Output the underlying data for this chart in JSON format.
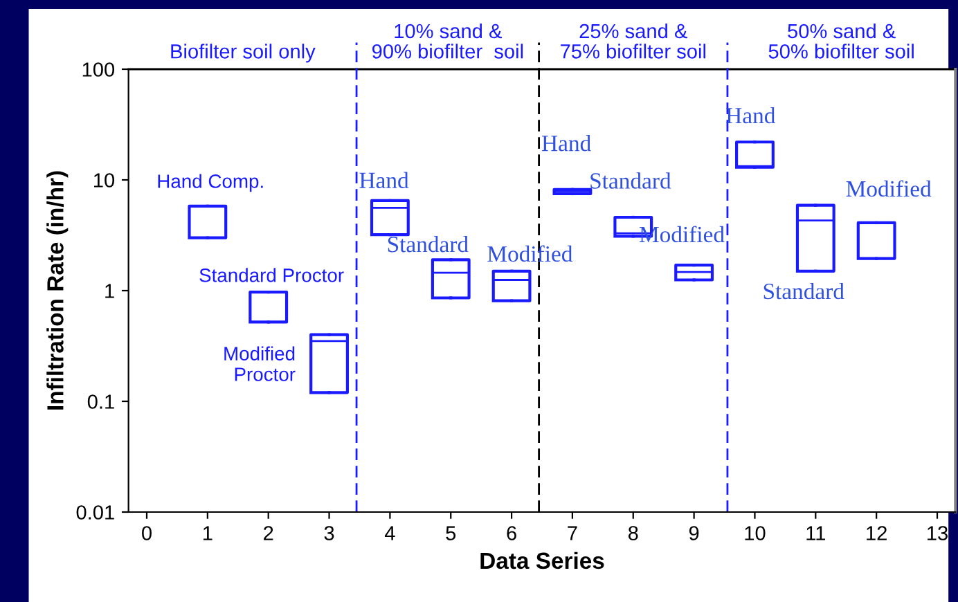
{
  "chart_data": {
    "type": "box",
    "xlabel": "Data Series",
    "ylabel": "Infiltration Rate (in/hr)",
    "log": true,
    "x": [
      1,
      2,
      3,
      4,
      5,
      6,
      7,
      8,
      9,
      10,
      11,
      12
    ],
    "color": "#1a1aff",
    "boxes": [
      {
        "low": 3.0,
        "q1": 3.0,
        "median": 3.0,
        "q3": 5.8,
        "high": 5.8
      },
      {
        "low": 0.52,
        "q1": 0.52,
        "median": 0.52,
        "q3": 0.97,
        "high": 0.97
      },
      {
        "low": 0.12,
        "q1": 0.12,
        "median": 0.35,
        "q3": 0.4,
        "high": 0.4
      },
      {
        "low": 3.2,
        "q1": 3.2,
        "median": 5.6,
        "q3": 6.5,
        "high": 6.5
      },
      {
        "low": 0.86,
        "q1": 0.86,
        "median": 1.45,
        "q3": 1.9,
        "high": 1.9
      },
      {
        "low": 0.81,
        "q1": 0.81,
        "median": 1.25,
        "q3": 1.5,
        "high": 1.5
      },
      {
        "low": 7.5,
        "q1": 7.5,
        "median": 7.9,
        "q3": 8.2,
        "high": 8.2
      },
      {
        "low": 3.1,
        "q1": 3.1,
        "median": 3.3,
        "q3": 4.6,
        "high": 4.6
      },
      {
        "low": 1.25,
        "q1": 1.25,
        "median": 1.47,
        "q3": 1.7,
        "high": 1.7
      },
      {
        "low": 13,
        "q1": 13,
        "median": 13.3,
        "q3": 22,
        "high": 22
      },
      {
        "low": 1.5,
        "q1": 1.5,
        "median": 4.3,
        "q3": 5.9,
        "high": 5.9
      },
      {
        "low": 1.95,
        "q1": 1.95,
        "median": 1.95,
        "q3": 4.1,
        "high": 4.1
      }
    ],
    "xlim": [
      -0.3,
      13.3
    ],
    "xticks": [
      0,
      1,
      2,
      3,
      4,
      5,
      6,
      7,
      8,
      9,
      10,
      11,
      12,
      13
    ],
    "ylim": [
      0.01,
      100
    ],
    "yticks": [
      0.01,
      0.1,
      1,
      10,
      100
    ],
    "grid": false,
    "legend": false,
    "ref_lines": [
      {
        "axis": "x",
        "value": 3.45,
        "color": "#1a1aff",
        "line_style": "dashed"
      },
      {
        "axis": "x",
        "value": 6.45,
        "color": "#000000",
        "line_style": "dashed"
      },
      {
        "axis": "x",
        "value": 9.55,
        "color": "#1a1aff",
        "line_style": "dashed"
      }
    ],
    "annotations": [
      "Biofilter soil only",
      "10% sand &\n90% biofilter  soil",
      "25% sand &\n75% biofilter soil",
      "50% sand &\n50% biofilter soil",
      "Hand Comp.",
      "Standard Proctor",
      "Modified\nProctor",
      "Hand",
      "Standard",
      "Modified",
      "Hand",
      "Standard",
      "Modified",
      "Hand",
      "Standard",
      "Modified"
    ]
  }
}
